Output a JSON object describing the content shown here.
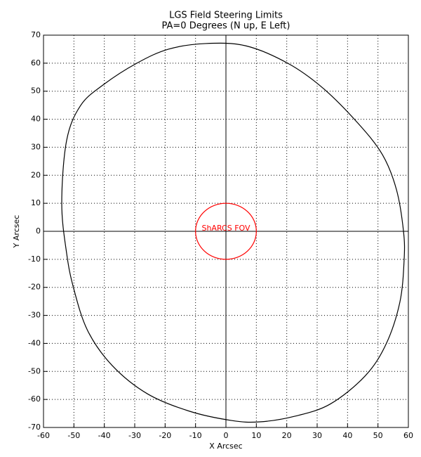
{
  "chart_data": {
    "type": "line",
    "title": "LGS Field Steering Limits",
    "subtitle": "PA=0 Degrees (N up, E Left)",
    "xlabel": "X Arcsec",
    "ylabel": "Y Arcsec",
    "annotation": "ShARCS FOV",
    "xlim": [
      -60,
      60
    ],
    "ylim": [
      -70,
      70
    ],
    "xticks": [
      -60,
      -50,
      -40,
      -30,
      -20,
      -10,
      0,
      10,
      20,
      30,
      40,
      50,
      60
    ],
    "yticks": [
      -70,
      -60,
      -50,
      -40,
      -30,
      -20,
      -10,
      0,
      10,
      20,
      30,
      40,
      50,
      60,
      70
    ],
    "grid": true,
    "closed": true,
    "series": [
      {
        "color": "#000000",
        "x": [
          -54,
          -52.4,
          -47.8,
          -40.2,
          -29.3,
          -18.9,
          -6.7,
          6.5,
          20.3,
          31.8,
          43.4,
          51.5,
          56.1,
          58.4,
          58.6,
          57.2,
          52.6,
          45.7,
          34.2,
          22.6,
          11.1,
          1.8,
          -12,
          -25.8,
          -37.4,
          -45.5,
          -50.1,
          -52.4
        ],
        "y": [
          10,
          32.4,
          44.9,
          52.4,
          60,
          65,
          67,
          66.2,
          60,
          51.2,
          38.6,
          27.3,
          14.8,
          0,
          -10.3,
          -25.3,
          -40.4,
          -51.7,
          -61.7,
          -66,
          -68,
          -67.5,
          -64.2,
          -58,
          -47.9,
          -35.4,
          -20.3,
          -7.8
        ]
      },
      {
        "color": "#ff0000",
        "x": [
          10,
          9.24,
          7.07,
          3.83,
          0,
          -3.83,
          -7.07,
          -9.24,
          -10,
          -9.24,
          -7.07,
          -3.83,
          0,
          3.83,
          7.07,
          9.24
        ],
        "y": [
          0,
          3.83,
          7.07,
          9.24,
          10,
          9.24,
          7.07,
          3.83,
          0,
          -3.83,
          -7.07,
          -9.24,
          -10,
          -9.24,
          -7.07,
          -3.83
        ]
      }
    ]
  }
}
